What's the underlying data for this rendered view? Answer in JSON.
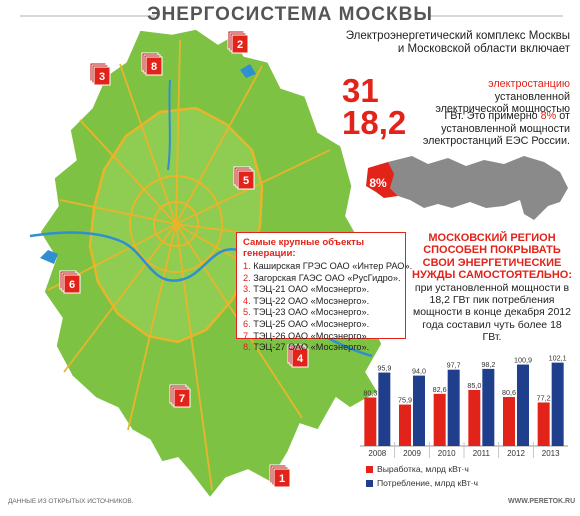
{
  "title": "ЭНЕРГОСИСТЕМА МОСКВЫ",
  "colors": {
    "red": "#e2231a",
    "blue": "#1f3e8c",
    "green": "#7ec244",
    "road": "#e8b52a",
    "water": "#2f8fd0"
  },
  "intro": "Электроэнергетический комплекс Москвы и Московской области включает",
  "stat_stations": {
    "value": "31",
    "text_red": "электростанцию",
    "text": "установленной электрической мощностью"
  },
  "stat_power": {
    "value": "18,2",
    "text_gw": "ГВт. Это примерно",
    "pct": "8%",
    "text": "от установленной мощности электростанций ЕЭС России."
  },
  "russia_map": {
    "pct_label": "8%"
  },
  "objects": {
    "heading": "Самые крупные объекты генерации:",
    "items": [
      {
        "num": "1.",
        "text": "Каширская ГРЭС ОАО «Интер РАО»."
      },
      {
        "num": "2.",
        "text": "Загорская ГАЭС ОАО «РусГидро»."
      },
      {
        "num": "3.",
        "text": "ТЭЦ-21 ОАО «Мосэнерго»."
      },
      {
        "num": "4.",
        "text": "ТЭЦ-22 ОАО «Мосэнерго»."
      },
      {
        "num": "5.",
        "text": "ТЭЦ-23 ОАО «Мосэнерго»."
      },
      {
        "num": "6.",
        "text": "ТЭЦ-25 ОАО «Мосэнерго»."
      },
      {
        "num": "7.",
        "text": "ТЭЦ-26 ОАО «Мосэнерго»."
      },
      {
        "num": "8.",
        "text": "ТЭЦ-27 ОАО «Мосэнерго»."
      }
    ]
  },
  "map_markers": [
    "2",
    "3",
    "8",
    "5",
    "6",
    "4",
    "7",
    "1"
  ],
  "region": {
    "heading": "МОСКОВСКИЙ РЕГИОН СПОСОБЕН ПОКРЫВАТЬ СВОИ ЭНЕРГЕТИЧЕСКИЕ НУЖДЫ САМОСТОЯТЕЛЬНО:",
    "text": "при установленной мощности в 18,2 ГВт пик потребления мощности в конце декабря 2012 года составил чуть более 18 ГВт."
  },
  "chart_data": {
    "type": "bar",
    "categories": [
      "2008",
      "2009",
      "2010",
      "2011",
      "2012",
      "2013"
    ],
    "series": [
      {
        "name": "Выработка, млрд кВт·ч",
        "values": [
          80.3,
          75.9,
          82.6,
          85.0,
          80.6,
          77.2
        ],
        "labels": [
          "80,3",
          "75,9",
          "82,6",
          "85,0",
          "80,6",
          "77,2"
        ],
        "color": "#e2231a"
      },
      {
        "name": "Потребление, млрд кВт·ч",
        "values": [
          95.9,
          94.0,
          97.7,
          98.2,
          100.9,
          102.1
        ],
        "labels": [
          "95,9",
          "94,0",
          "97,7",
          "98,2",
          "100,9",
          "102,1"
        ],
        "color": "#1f3e8c"
      }
    ],
    "ylim": [
      50,
      105
    ],
    "grid": false,
    "legend": "bottom"
  },
  "footer": {
    "source": "ДАННЫЕ ИЗ ОТКРЫТЫХ ИСТОЧНИКОВ.",
    "site": "WWW.PERETOK.RU"
  }
}
